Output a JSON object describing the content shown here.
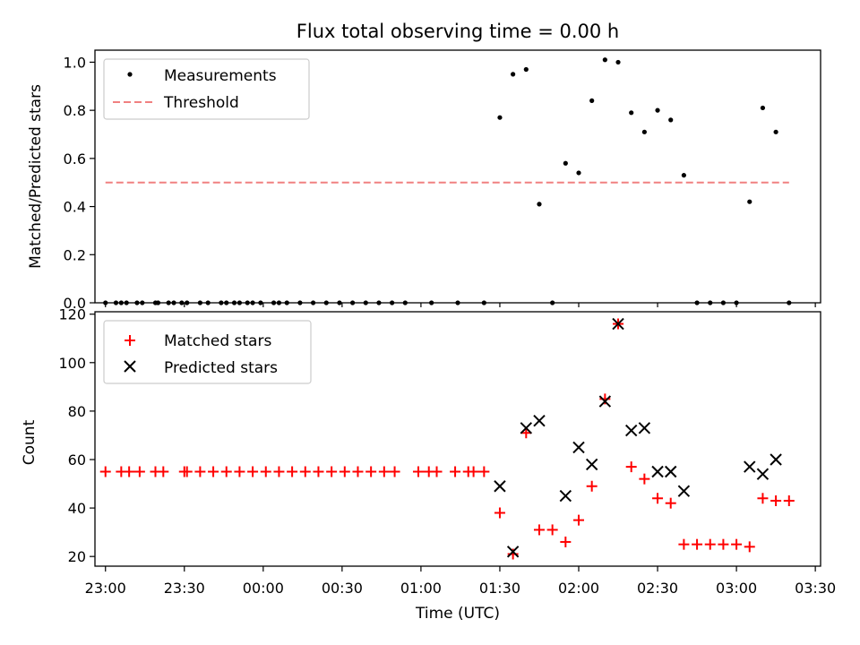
{
  "chart_data": [
    {
      "type": "scatter",
      "title": "Flux total observing time = 0.00 h",
      "ylabel": "Matched/Predicted stars",
      "xlabel": "",
      "xlim": [
        "22:56",
        "03:32"
      ],
      "ylim": [
        0,
        1.05
      ],
      "yticks": [
        0.0,
        0.2,
        0.4,
        0.6,
        0.8,
        1.0
      ],
      "ytick_labels": [
        "0.0",
        "0.2",
        "0.4",
        "0.6",
        "0.8",
        "1.0"
      ],
      "legend_position": "upper-left",
      "series": [
        {
          "name": "Measurements",
          "color": "#000000",
          "marker": "dot",
          "points": [
            [
              "23:00",
              0.0
            ],
            [
              "23:04",
              0.0
            ],
            [
              "23:06",
              0.0
            ],
            [
              "23:08",
              0.0
            ],
            [
              "23:12",
              0.0
            ],
            [
              "23:14",
              0.0
            ],
            [
              "23:19",
              0.0
            ],
            [
              "23:20",
              0.0
            ],
            [
              "23:24",
              0.0
            ],
            [
              "23:26",
              0.0
            ],
            [
              "23:29",
              0.0
            ],
            [
              "23:31",
              0.0
            ],
            [
              "23:36",
              0.0
            ],
            [
              "23:39",
              0.0
            ],
            [
              "23:44",
              0.0
            ],
            [
              "23:46",
              0.0
            ],
            [
              "23:49",
              0.0
            ],
            [
              "23:51",
              0.0
            ],
            [
              "23:54",
              0.0
            ],
            [
              "23:56",
              0.0
            ],
            [
              "23:59",
              0.0
            ],
            [
              "00:04",
              0.0
            ],
            [
              "00:06",
              0.0
            ],
            [
              "00:09",
              0.0
            ],
            [
              "00:14",
              0.0
            ],
            [
              "00:19",
              0.0
            ],
            [
              "00:24",
              0.0
            ],
            [
              "00:29",
              0.0
            ],
            [
              "00:34",
              0.0
            ],
            [
              "00:39",
              0.0
            ],
            [
              "00:44",
              0.0
            ],
            [
              "00:49",
              0.0
            ],
            [
              "00:54",
              0.0
            ],
            [
              "01:04",
              0.0
            ],
            [
              "01:14",
              0.0
            ],
            [
              "01:24",
              0.0
            ],
            [
              "01:30",
              0.77
            ],
            [
              "01:35",
              0.95
            ],
            [
              "01:40",
              0.97
            ],
            [
              "01:45",
              0.41
            ],
            [
              "01:50",
              0.0
            ],
            [
              "01:55",
              0.58
            ],
            [
              "02:00",
              0.54
            ],
            [
              "02:05",
              0.84
            ],
            [
              "02:10",
              1.01
            ],
            [
              "02:15",
              1.0
            ],
            [
              "02:20",
              0.79
            ],
            [
              "02:25",
              0.71
            ],
            [
              "02:30",
              0.8
            ],
            [
              "02:35",
              0.76
            ],
            [
              "02:40",
              0.53
            ],
            [
              "02:45",
              0.0
            ],
            [
              "02:50",
              0.0
            ],
            [
              "02:55",
              0.0
            ],
            [
              "03:00",
              0.0
            ],
            [
              "03:05",
              0.42
            ],
            [
              "03:10",
              0.81
            ],
            [
              "03:15",
              0.71
            ],
            [
              "03:20",
              0.0
            ]
          ]
        },
        {
          "name": "Threshold",
          "color": "#f08080",
          "line_style": "dashed",
          "points": [
            [
              "23:00",
              0.5
            ],
            [
              "03:20",
              0.5
            ]
          ]
        }
      ]
    },
    {
      "type": "scatter",
      "title": "",
      "ylabel": "Count",
      "xlabel": "Time (UTC)",
      "xlim": [
        "22:56",
        "03:32"
      ],
      "ylim": [
        16,
        121
      ],
      "yticks": [
        20,
        40,
        60,
        80,
        100,
        120
      ],
      "ytick_labels": [
        "20",
        "40",
        "60",
        "80",
        "100",
        "120"
      ],
      "xticks": [
        "23:00",
        "23:30",
        "00:00",
        "00:30",
        "01:00",
        "01:30",
        "02:00",
        "02:30",
        "03:00",
        "03:30"
      ],
      "legend_position": "upper-left",
      "series": [
        {
          "name": "Matched stars",
          "color": "#ff0000",
          "marker": "plus",
          "points": [
            [
              "23:00",
              55
            ],
            [
              "23:06",
              55
            ],
            [
              "23:09",
              55
            ],
            [
              "23:13",
              55
            ],
            [
              "23:19",
              55
            ],
            [
              "23:22",
              55
            ],
            [
              "23:30",
              55
            ],
            [
              "23:31",
              55
            ],
            [
              "23:36",
              55
            ],
            [
              "23:41",
              55
            ],
            [
              "23:46",
              55
            ],
            [
              "23:51",
              55
            ],
            [
              "23:56",
              55
            ],
            [
              "00:01",
              55
            ],
            [
              "00:06",
              55
            ],
            [
              "00:11",
              55
            ],
            [
              "00:16",
              55
            ],
            [
              "00:21",
              55
            ],
            [
              "00:26",
              55
            ],
            [
              "00:31",
              55
            ],
            [
              "00:36",
              55
            ],
            [
              "00:41",
              55
            ],
            [
              "00:46",
              55
            ],
            [
              "00:50",
              55
            ],
            [
              "00:59",
              55
            ],
            [
              "01:03",
              55
            ],
            [
              "01:06",
              55
            ],
            [
              "01:13",
              55
            ],
            [
              "01:18",
              55
            ],
            [
              "01:20",
              55
            ],
            [
              "01:24",
              55
            ],
            [
              "01:30",
              38
            ],
            [
              "01:35",
              21
            ],
            [
              "01:40",
              71
            ],
            [
              "01:45",
              31
            ],
            [
              "01:50",
              31
            ],
            [
              "01:55",
              26
            ],
            [
              "02:00",
              35
            ],
            [
              "02:05",
              49
            ],
            [
              "02:10",
              85
            ],
            [
              "02:15",
              116
            ],
            [
              "02:20",
              57
            ],
            [
              "02:25",
              52
            ],
            [
              "02:30",
              44
            ],
            [
              "02:35",
              42
            ],
            [
              "02:40",
              25
            ],
            [
              "02:45",
              25
            ],
            [
              "02:50",
              25
            ],
            [
              "02:55",
              25
            ],
            [
              "03:00",
              25
            ],
            [
              "03:05",
              24
            ],
            [
              "03:10",
              44
            ],
            [
              "03:15",
              43
            ],
            [
              "03:20",
              43
            ]
          ]
        },
        {
          "name": "Predicted stars",
          "color": "#000000",
          "marker": "x",
          "points": [
            [
              "01:30",
              49
            ],
            [
              "01:35",
              22
            ],
            [
              "01:40",
              73
            ],
            [
              "01:45",
              76
            ],
            [
              "01:55",
              45
            ],
            [
              "02:00",
              65
            ],
            [
              "02:05",
              58
            ],
            [
              "02:10",
              84
            ],
            [
              "02:15",
              116
            ],
            [
              "02:20",
              72
            ],
            [
              "02:25",
              73
            ],
            [
              "02:30",
              55
            ],
            [
              "02:35",
              55
            ],
            [
              "02:40",
              47
            ],
            [
              "03:05",
              57
            ],
            [
              "03:10",
              54
            ],
            [
              "03:15",
              60
            ]
          ]
        }
      ]
    }
  ]
}
